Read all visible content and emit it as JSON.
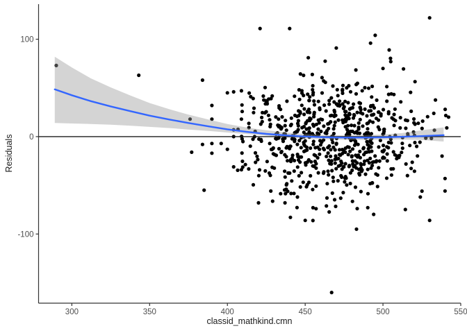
{
  "chart_data": {
    "type": "scatter",
    "title": "",
    "xlabel": "classid_mathkind.cmn",
    "ylabel": "Residuals",
    "xlim": [
      278.6,
      550
    ],
    "ylim": [
      -171,
      136
    ],
    "x_ticks": [
      300,
      350,
      400,
      450,
      500,
      550
    ],
    "y_ticks": [
      -100,
      0,
      100
    ],
    "grid": "off",
    "legend": "none",
    "hline_y": 0,
    "colors": {
      "point": "#000000",
      "smooth_line": "#3366FF",
      "ribbon": "rgba(153,153,153,0.42)",
      "axis": "#333333",
      "tick_label": "#4d4d4d",
      "hline": "#1a1a1a",
      "background": "#ffffff"
    },
    "smooth": {
      "x": [
        289,
        300,
        312,
        325,
        338,
        350,
        363,
        375,
        388,
        400,
        412,
        425,
        438,
        450,
        462,
        475,
        488,
        500,
        512,
        525,
        539
      ],
      "y": [
        48.5,
        42.5,
        36.5,
        31,
        26,
        21.5,
        17.5,
        14,
        10.5,
        7.5,
        5,
        2.8,
        1.2,
        0.1,
        -0.6,
        -1.0,
        -1.0,
        -0.7,
        -0.2,
        0.5,
        1.5
      ],
      "upper": [
        82,
        71,
        60,
        50.5,
        42,
        34.5,
        28,
        22.5,
        17.5,
        13,
        9.5,
        6.5,
        4.2,
        2.6,
        1.6,
        1.2,
        1.4,
        2.2,
        3.6,
        6.5,
        9.5
      ],
      "lower": [
        14,
        13.5,
        13,
        12.2,
        11.2,
        10,
        8.8,
        7.3,
        5.8,
        4.2,
        2.6,
        1.0,
        -0.6,
        -1.9,
        -2.8,
        -3.3,
        -3.4,
        -3.2,
        -3.0,
        -3.5,
        -5.0
      ]
    },
    "points_notable": [
      [
        290,
        73
      ],
      [
        343,
        63
      ],
      [
        384,
        58
      ],
      [
        400,
        45
      ],
      [
        404,
        46
      ],
      [
        409,
        47
      ],
      [
        390,
        32
      ],
      [
        415,
        41
      ],
      [
        376,
        18
      ],
      [
        390,
        18
      ],
      [
        404,
        7
      ],
      [
        404,
        0
      ],
      [
        384,
        -8
      ],
      [
        390,
        -7
      ],
      [
        396,
        -7
      ],
      [
        400,
        -13
      ],
      [
        377,
        -16
      ],
      [
        390,
        -17
      ],
      [
        410,
        -5
      ],
      [
        404,
        -31
      ],
      [
        409,
        -34
      ],
      [
        385,
        -55
      ],
      [
        420,
        -68
      ],
      [
        421,
        111
      ],
      [
        440,
        111
      ],
      [
        530,
        122
      ],
      [
        495,
        104
      ],
      [
        492,
        96
      ],
      [
        470,
        91
      ],
      [
        504,
        89
      ],
      [
        452,
        81
      ],
      [
        505,
        77
      ],
      [
        500,
        70
      ],
      [
        467,
        -160
      ],
      [
        483,
        -95
      ],
      [
        530,
        -86
      ],
      [
        450,
        -86
      ],
      [
        455,
        -73
      ],
      [
        457,
        -74
      ],
      [
        445,
        -62
      ],
      [
        464,
        -63
      ],
      [
        437,
        -68
      ],
      [
        540,
        28
      ],
      [
        538,
        -20
      ],
      [
        541,
        9
      ],
      [
        524,
        -62
      ]
    ],
    "scatter": {
      "seed": 13,
      "clusters": [
        {
          "n": 640,
          "x_dist": "normal",
          "x_mean": 468,
          "x_sd": 28,
          "x_min": 406,
          "x_max": 544,
          "y_dist": "normal",
          "y_mean": -3,
          "y_sd": 30,
          "y_min": -98,
          "y_max": 110
        },
        {
          "n": 30,
          "x_dist": "uniform",
          "x_min": 406,
          "x_max": 440,
          "y_dist": "normal",
          "y_mean": 0,
          "y_sd": 30,
          "y_min": -72,
          "y_max": 72
        }
      ]
    }
  }
}
